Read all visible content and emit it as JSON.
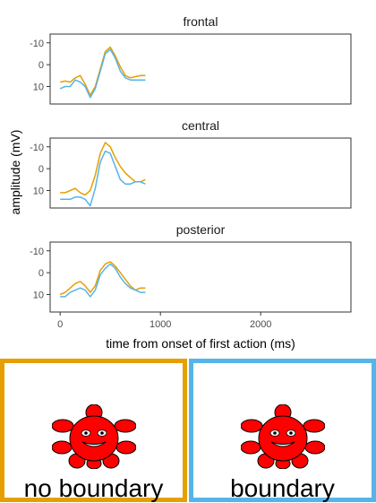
{
  "chart_data": {
    "type": "line",
    "xlabel": "time from onset of first action (ms)",
    "ylabel": "amplitude (mV)",
    "xlim": [
      -100,
      2900
    ],
    "ylim": [
      -14,
      18
    ],
    "y_reversed": true,
    "x_ticks": [
      0,
      1000,
      2000
    ],
    "y_ticks": [
      -10,
      0,
      10
    ],
    "grid": false,
    "series_colors": {
      "no_boundary": "#E69F00",
      "boundary": "#56B4E9"
    },
    "x": [
      0,
      50,
      100,
      150,
      200,
      250,
      300,
      350,
      400,
      450,
      500,
      550,
      600,
      650,
      700,
      750,
      800,
      850
    ],
    "panels": [
      {
        "title": "frontal",
        "series": [
          {
            "key": "no_boundary",
            "values": [
              8,
              7.5,
              8,
              6,
              5,
              9,
              14,
              10,
              2,
              -6,
              -8,
              -4,
              1,
              5,
              6,
              5.5,
              5,
              5
            ]
          },
          {
            "key": "boundary",
            "values": [
              11,
              10,
              10,
              7,
              8,
              10,
              15,
              11,
              3,
              -5,
              -7,
              -3,
              3,
              6,
              7,
              7,
              7,
              7
            ]
          }
        ]
      },
      {
        "title": "central",
        "series": [
          {
            "key": "no_boundary",
            "values": [
              11,
              11,
              10,
              9,
              11,
              12,
              10,
              3,
              -7,
              -12,
              -10,
              -5,
              -1,
              2,
              4,
              6,
              6,
              5
            ]
          },
          {
            "key": "boundary",
            "values": [
              14,
              14,
              14,
              13,
              13,
              14,
              17,
              9,
              -3,
              -8,
              -7,
              -1,
              5,
              7,
              7,
              6,
              6,
              7
            ]
          }
        ]
      },
      {
        "title": "posterior",
        "series": [
          {
            "key": "no_boundary",
            "values": [
              10,
              9,
              7,
              5,
              4,
              6,
              9,
              6,
              -1,
              -4,
              -5,
              -3,
              0,
              3,
              6,
              8,
              7,
              7
            ]
          },
          {
            "key": "boundary",
            "values": [
              11,
              11,
              9,
              8,
              7,
              8,
              11,
              8,
              1,
              -2,
              -4,
              -2,
              2,
              5,
              7,
              8,
              9,
              9
            ]
          }
        ]
      }
    ]
  },
  "legend": [
    {
      "key": "no_boundary",
      "label": "no boundary",
      "color": "#E69F00"
    },
    {
      "key": "boundary",
      "label": "boundary",
      "color": "#56B4E9"
    }
  ]
}
